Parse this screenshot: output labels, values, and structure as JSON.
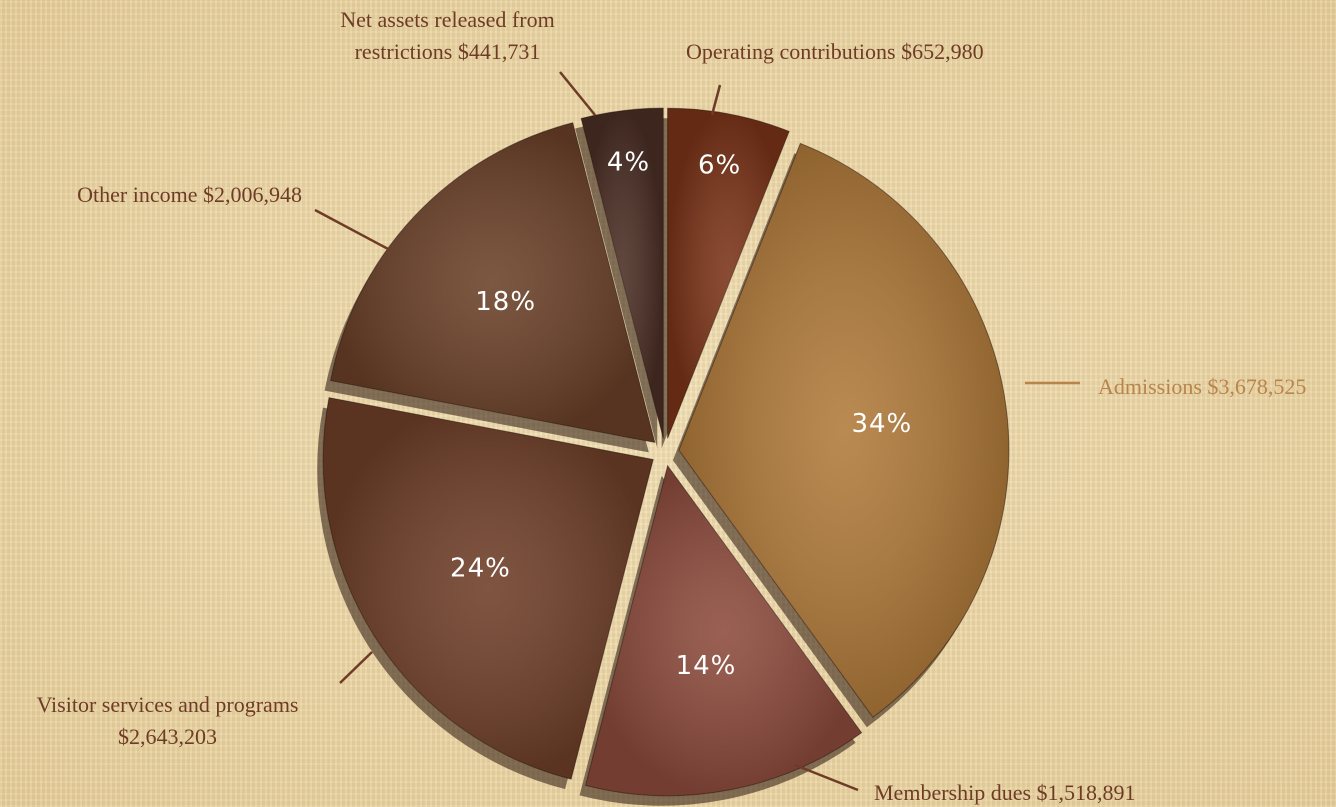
{
  "chart_data": {
    "type": "pie",
    "categories": [
      "Operating contributions $652,980",
      "Admissions $3,678,525",
      "Membership dues $1,518,891",
      "Visitor services and programs $2,643,203",
      "Other income $2,006,948",
      "Net assets released from restrictions $441,731"
    ],
    "values": [
      6,
      34,
      14,
      24,
      18,
      4
    ],
    "value_labels": [
      "6%",
      "34%",
      "14%",
      "24%",
      "18%",
      "4%"
    ],
    "colors": [
      "#7a3318",
      "#b07a3a",
      "#8c4a3c",
      "#6e3e28",
      "#6a4028",
      "#4a2e24"
    ]
  }
}
